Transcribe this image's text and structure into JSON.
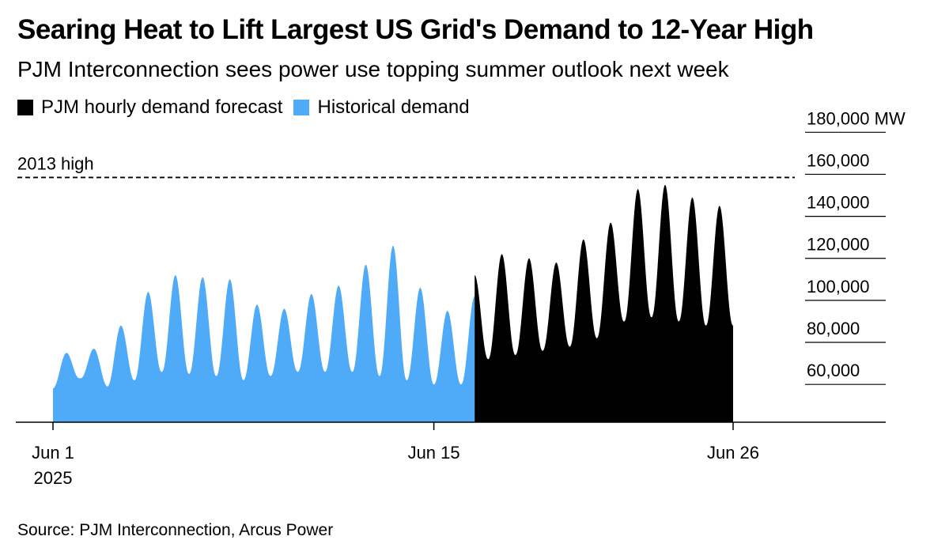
{
  "title": "Searing Heat to Lift Largest US Grid's Demand to 12-Year High",
  "subtitle": "PJM Interconnection sees power use topping summer outlook next week",
  "legend": [
    {
      "label": "PJM hourly demand forecast",
      "color": "#000000"
    },
    {
      "label": "Historical demand",
      "color": "#4fabf7"
    }
  ],
  "source": "Source: PJM Interconnection, Arcus Power",
  "chart_data": {
    "type": "area",
    "x_unit": "day",
    "x_start": "2025-06-01",
    "x_range": [
      0,
      30
    ],
    "ylim": [
      42000,
      182000
    ],
    "yunit": "MW",
    "yticks": [
      {
        "value": 60000,
        "label": "60,000"
      },
      {
        "value": 80000,
        "label": "80,000"
      },
      {
        "value": 100000,
        "label": "100,000"
      },
      {
        "value": 120000,
        "label": "120,000"
      },
      {
        "value": 140000,
        "label": "140,000"
      },
      {
        "value": 160000,
        "label": "160,000"
      },
      {
        "value": 180000,
        "label": "180,000 MW"
      }
    ],
    "xticks": [
      {
        "value": 0,
        "label": "Jun 1",
        "sublabel": "2025"
      },
      {
        "value": 14,
        "label": "Jun 15",
        "sublabel": ""
      },
      {
        "value": 25,
        "label": "Jun 26",
        "sublabel": ""
      }
    ],
    "reference_line": {
      "label": "2013 high",
      "value": 158500
    },
    "series": [
      {
        "name": "Historical demand",
        "color": "#4fabf7",
        "x_start": 0,
        "x_end": 15.5,
        "daily_minimum": [
          58000,
          63000,
          59000,
          62000,
          66000,
          65000,
          64000,
          62000,
          64000,
          66000,
          66000,
          66000,
          64000,
          62000,
          60000,
          60000
        ],
        "daily_peak": [
          75000,
          77000,
          88000,
          104000,
          112000,
          111000,
          110000,
          98000,
          96000,
          103000,
          107000,
          117000,
          126000,
          106000,
          95000,
          102000
        ]
      },
      {
        "name": "PJM hourly demand forecast",
        "color": "#000000",
        "x_start": 15.5,
        "x_end": 25,
        "daily_minimum": [
          70000,
          72000,
          74000,
          76000,
          78000,
          82000,
          90000,
          92000,
          90000,
          88000
        ],
        "daily_peak": [
          112000,
          122000,
          120000,
          118000,
          129000,
          137000,
          153000,
          155000,
          149000,
          145000
        ]
      }
    ]
  }
}
